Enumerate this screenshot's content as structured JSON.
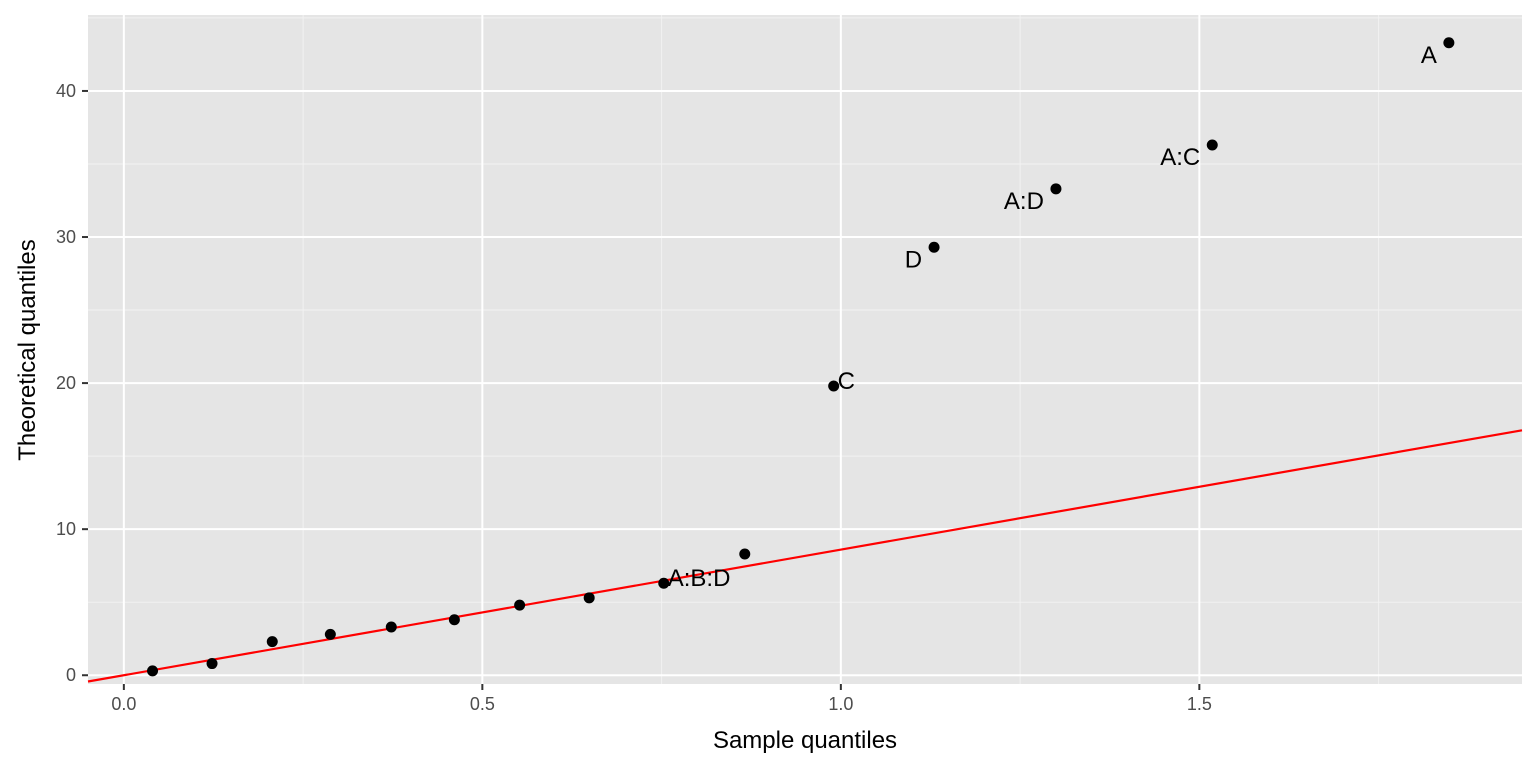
{
  "chart_data": {
    "type": "scatter",
    "title": "",
    "xlabel": "Sample quantiles",
    "ylabel": "Theoretical quantiles",
    "xlim": [
      -0.05,
      1.95
    ],
    "ylim": [
      -0.6,
      45.2
    ],
    "x_ticks": [
      0.0,
      0.5,
      1.0,
      1.5
    ],
    "x_tick_labels": [
      "0.0",
      "0.5",
      "1.0",
      "1.5"
    ],
    "y_ticks": [
      0,
      10,
      20,
      30,
      40
    ],
    "y_tick_labels": [
      "0",
      "10",
      "20",
      "30",
      "40"
    ],
    "grid": true,
    "points": [
      {
        "x": 0.04,
        "y": 0.3,
        "label": ""
      },
      {
        "x": 0.123,
        "y": 0.8,
        "label": ""
      },
      {
        "x": 0.207,
        "y": 2.3,
        "label": ""
      },
      {
        "x": 0.288,
        "y": 2.8,
        "label": ""
      },
      {
        "x": 0.373,
        "y": 3.3,
        "label": ""
      },
      {
        "x": 0.461,
        "y": 3.8,
        "label": ""
      },
      {
        "x": 0.552,
        "y": 4.8,
        "label": ""
      },
      {
        "x": 0.649,
        "y": 5.3,
        "label": ""
      },
      {
        "x": 0.753,
        "y": 6.3,
        "label": "A:B:D",
        "label_side": "right"
      },
      {
        "x": 0.866,
        "y": 8.3,
        "label": ""
      },
      {
        "x": 0.99,
        "y": 19.8,
        "label": "C",
        "label_side": "right"
      },
      {
        "x": 1.13,
        "y": 29.3,
        "label": "D",
        "label_side": "left"
      },
      {
        "x": 1.3,
        "y": 33.3,
        "label": "A:D",
        "label_side": "left"
      },
      {
        "x": 1.518,
        "y": 36.3,
        "label": "A:C",
        "label_side": "left"
      },
      {
        "x": 1.848,
        "y": 43.3,
        "label": "A",
        "label_side": "left"
      }
    ],
    "reference_line": {
      "intercept": 0.0,
      "slope": 8.6,
      "color": "#ff0000"
    }
  }
}
